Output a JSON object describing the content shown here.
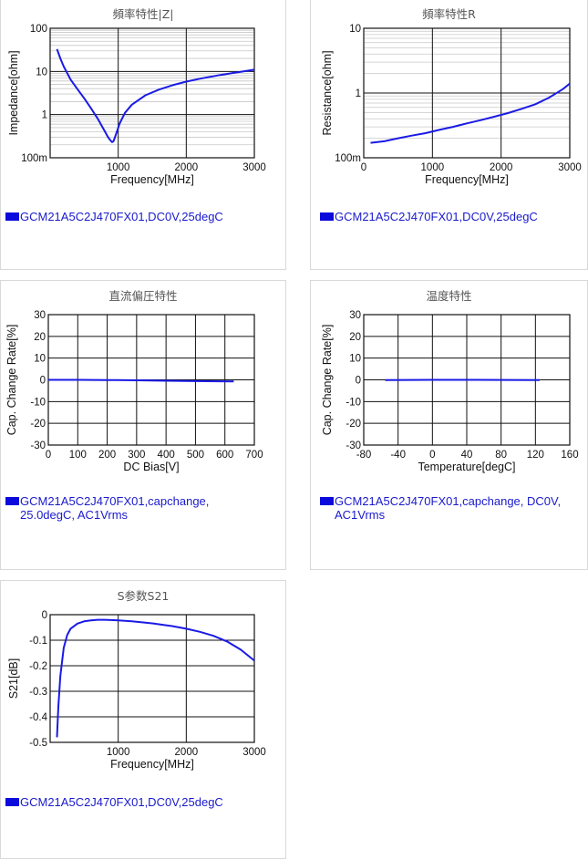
{
  "panels": [
    {
      "id": "p1",
      "title": "頻率特性|Z|",
      "legend": "GCM21A5C2J470FX01,DC0V,25degC",
      "legend_color": "#0000ee",
      "chart_data": {
        "type": "line",
        "title": "頻率特性|Z|",
        "xlabel": "Frequency[MHz]",
        "ylabel": "Impedance[ohm]",
        "xlim": [
          0,
          3000
        ],
        "ylim": [
          0.1,
          100
        ],
        "yscale": "log",
        "xticks": [
          {
            "v": 1000,
            "label": "1000"
          },
          {
            "v": 2000,
            "label": "2000"
          },
          {
            "v": 3000,
            "label": "3000"
          }
        ],
        "yticks": [
          {
            "v": 100,
            "label": "100"
          },
          {
            "v": 10,
            "label": "10"
          },
          {
            "v": 1,
            "label": "1"
          },
          {
            "v": 0.1,
            "label": "100m"
          }
        ],
        "grid": true,
        "line_color": "#1a1ae6",
        "series": [
          {
            "name": "GCM21A5C2J470FX01,DC0V,25degC",
            "x": [
              100,
              150,
              200,
              300,
              400,
              500,
              600,
              700,
              800,
              850,
              880,
              910,
              930,
              950,
              980,
              1020,
              1100,
              1200,
              1400,
              1600,
              1800,
              2000,
              2200,
              2500,
              2800,
              3000
            ],
            "y": [
              33,
              20,
              13,
              6.5,
              3.9,
              2.4,
              1.4,
              0.8,
              0.42,
              0.3,
              0.26,
              0.23,
              0.24,
              0.29,
              0.4,
              0.62,
              1.1,
              1.7,
              2.8,
              3.8,
              4.8,
              5.8,
              6.8,
              8.3,
              9.8,
              11
            ]
          }
        ]
      }
    },
    {
      "id": "p2",
      "title": "頻率特性R",
      "legend": "GCM21A5C2J470FX01,DC0V,25degC",
      "legend_color": "#0000ee",
      "chart_data": {
        "type": "line",
        "title": "頻率特性R",
        "xlabel": "Frequency[MHz]",
        "ylabel": "Resistance[ohm]",
        "xlim": [
          0,
          3000
        ],
        "ylim": [
          0.1,
          10
        ],
        "yscale": "log",
        "xticks": [
          {
            "v": 0,
            "label": "0"
          },
          {
            "v": 1000,
            "label": "1000"
          },
          {
            "v": 2000,
            "label": "2000"
          },
          {
            "v": 3000,
            "label": "3000"
          }
        ],
        "yticks": [
          {
            "v": 10,
            "label": "10"
          },
          {
            "v": 1,
            "label": "1"
          },
          {
            "v": 0.1,
            "label": "100m"
          }
        ],
        "grid": true,
        "line_color": "#1a1ae6",
        "series": [
          {
            "name": "GCM21A5C2J470FX01,DC0V,25degC",
            "x": [
              100,
              300,
              500,
              700,
              900,
              1100,
              1300,
              1500,
              1700,
              1900,
              2100,
              2300,
              2500,
              2700,
              2900,
              3000
            ],
            "y": [
              0.17,
              0.18,
              0.2,
              0.22,
              0.24,
              0.27,
              0.3,
              0.34,
              0.38,
              0.43,
              0.49,
              0.57,
              0.67,
              0.85,
              1.15,
              1.4
            ]
          }
        ]
      }
    },
    {
      "id": "p3",
      "title": "直流偏圧特性",
      "legend": "GCM21A5C2J470FX01,capchange, 25.0degC, AC1Vrms",
      "legend_lines": [
        "GCM21A5C2J470FX01,capchange,",
        "25.0degC, AC1Vrms"
      ],
      "legend_color": "#0000ee",
      "chart_data": {
        "type": "line",
        "title": "直流偏圧特性",
        "xlabel": "DC Bias[V]",
        "ylabel": "Cap. Change Rate[%]",
        "xlim": [
          0,
          700
        ],
        "ylim": [
          -30,
          30
        ],
        "yscale": "linear",
        "xticks": [
          {
            "v": 0,
            "label": "0"
          },
          {
            "v": 100,
            "label": "100"
          },
          {
            "v": 200,
            "label": "200"
          },
          {
            "v": 300,
            "label": "300"
          },
          {
            "v": 400,
            "label": "400"
          },
          {
            "v": 500,
            "label": "500"
          },
          {
            "v": 600,
            "label": "600"
          },
          {
            "v": 700,
            "label": "700"
          }
        ],
        "yticks": [
          {
            "v": 30,
            "label": "30"
          },
          {
            "v": 20,
            "label": "20"
          },
          {
            "v": 10,
            "label": "10"
          },
          {
            "v": 0,
            "label": "0"
          },
          {
            "v": -10,
            "label": "-10"
          },
          {
            "v": -20,
            "label": "-20"
          },
          {
            "v": -30,
            "label": "-30"
          }
        ],
        "grid": true,
        "line_color": "#1a1ae6",
        "series": [
          {
            "name": "GCM21A5C2J470FX01,capchange, 25.0degC, AC1Vrms",
            "x": [
              0,
              100,
              200,
              300,
              400,
              500,
              630
            ],
            "y": [
              0,
              0,
              -0.1,
              -0.2,
              -0.4,
              -0.6,
              -0.7
            ]
          }
        ]
      }
    },
    {
      "id": "p4",
      "title": "温度特性",
      "legend": "GCM21A5C2J470FX01,capchange, DC0V, AC1Vrms",
      "legend_lines": [
        "GCM21A5C2J470FX01,capchange, DC0V,",
        "AC1Vrms"
      ],
      "legend_color": "#0000ee",
      "chart_data": {
        "type": "line",
        "title": "温度特性",
        "xlabel": "Temperature[degC]",
        "ylabel": "Cap. Change Rate[%]",
        "xlim": [
          -80,
          160
        ],
        "ylim": [
          -30,
          30
        ],
        "yscale": "linear",
        "xticks": [
          {
            "v": -80,
            "label": "-80"
          },
          {
            "v": -40,
            "label": "-40"
          },
          {
            "v": 0,
            "label": "0"
          },
          {
            "v": 40,
            "label": "40"
          },
          {
            "v": 80,
            "label": "80"
          },
          {
            "v": 120,
            "label": "120"
          },
          {
            "v": 160,
            "label": "160"
          }
        ],
        "yticks": [
          {
            "v": 30,
            "label": "30"
          },
          {
            "v": 20,
            "label": "20"
          },
          {
            "v": 10,
            "label": "10"
          },
          {
            "v": 0,
            "label": "0"
          },
          {
            "v": -10,
            "label": "-10"
          },
          {
            "v": -20,
            "label": "-20"
          },
          {
            "v": -30,
            "label": "-30"
          }
        ],
        "grid": true,
        "line_color": "#1a1ae6",
        "series": [
          {
            "name": "GCM21A5C2J470FX01,capchange, DC0V, AC1Vrms",
            "x": [
              -55,
              -25,
              0,
              25,
              50,
              85,
              125
            ],
            "y": [
              -0.1,
              -0.05,
              0,
              0,
              0,
              -0.05,
              -0.1
            ]
          }
        ]
      }
    },
    {
      "id": "p5",
      "title": "S参数S21",
      "legend": "GCM21A5C2J470FX01,DC0V,25degC",
      "legend_color": "#0000ee",
      "chart_data": {
        "type": "line",
        "title": "S参数S21",
        "xlabel": "Frequency[MHz]",
        "ylabel": "S21[dB]",
        "xlim": [
          0,
          3000
        ],
        "ylim": [
          -0.5,
          0
        ],
        "yscale": "linear",
        "xticks": [
          {
            "v": 1000,
            "label": "1000"
          },
          {
            "v": 2000,
            "label": "2000"
          },
          {
            "v": 3000,
            "label": "3000"
          }
        ],
        "yticks": [
          {
            "v": 0,
            "label": "0"
          },
          {
            "v": -0.1,
            "label": "-0.1"
          },
          {
            "v": -0.2,
            "label": "-0.2"
          },
          {
            "v": -0.3,
            "label": "-0.3"
          },
          {
            "v": -0.4,
            "label": "-0.4"
          },
          {
            "v": -0.5,
            "label": "-0.5"
          }
        ],
        "grid": true,
        "line_color": "#1a1ae6",
        "series": [
          {
            "name": "GCM21A5C2J470FX01,DC0V,25degC",
            "x": [
              100,
              120,
              150,
              200,
              250,
              300,
              400,
              500,
              600,
              700,
              800,
              1000,
              1200,
              1500,
              1800,
              2000,
              2200,
              2400,
              2600,
              2800,
              3000
            ],
            "y": [
              -0.48,
              -0.36,
              -0.24,
              -0.13,
              -0.08,
              -0.055,
              -0.035,
              -0.026,
              -0.022,
              -0.02,
              -0.02,
              -0.022,
              -0.026,
              -0.034,
              -0.045,
              -0.055,
              -0.067,
              -0.083,
              -0.105,
              -0.137,
              -0.18
            ]
          }
        ]
      }
    }
  ]
}
